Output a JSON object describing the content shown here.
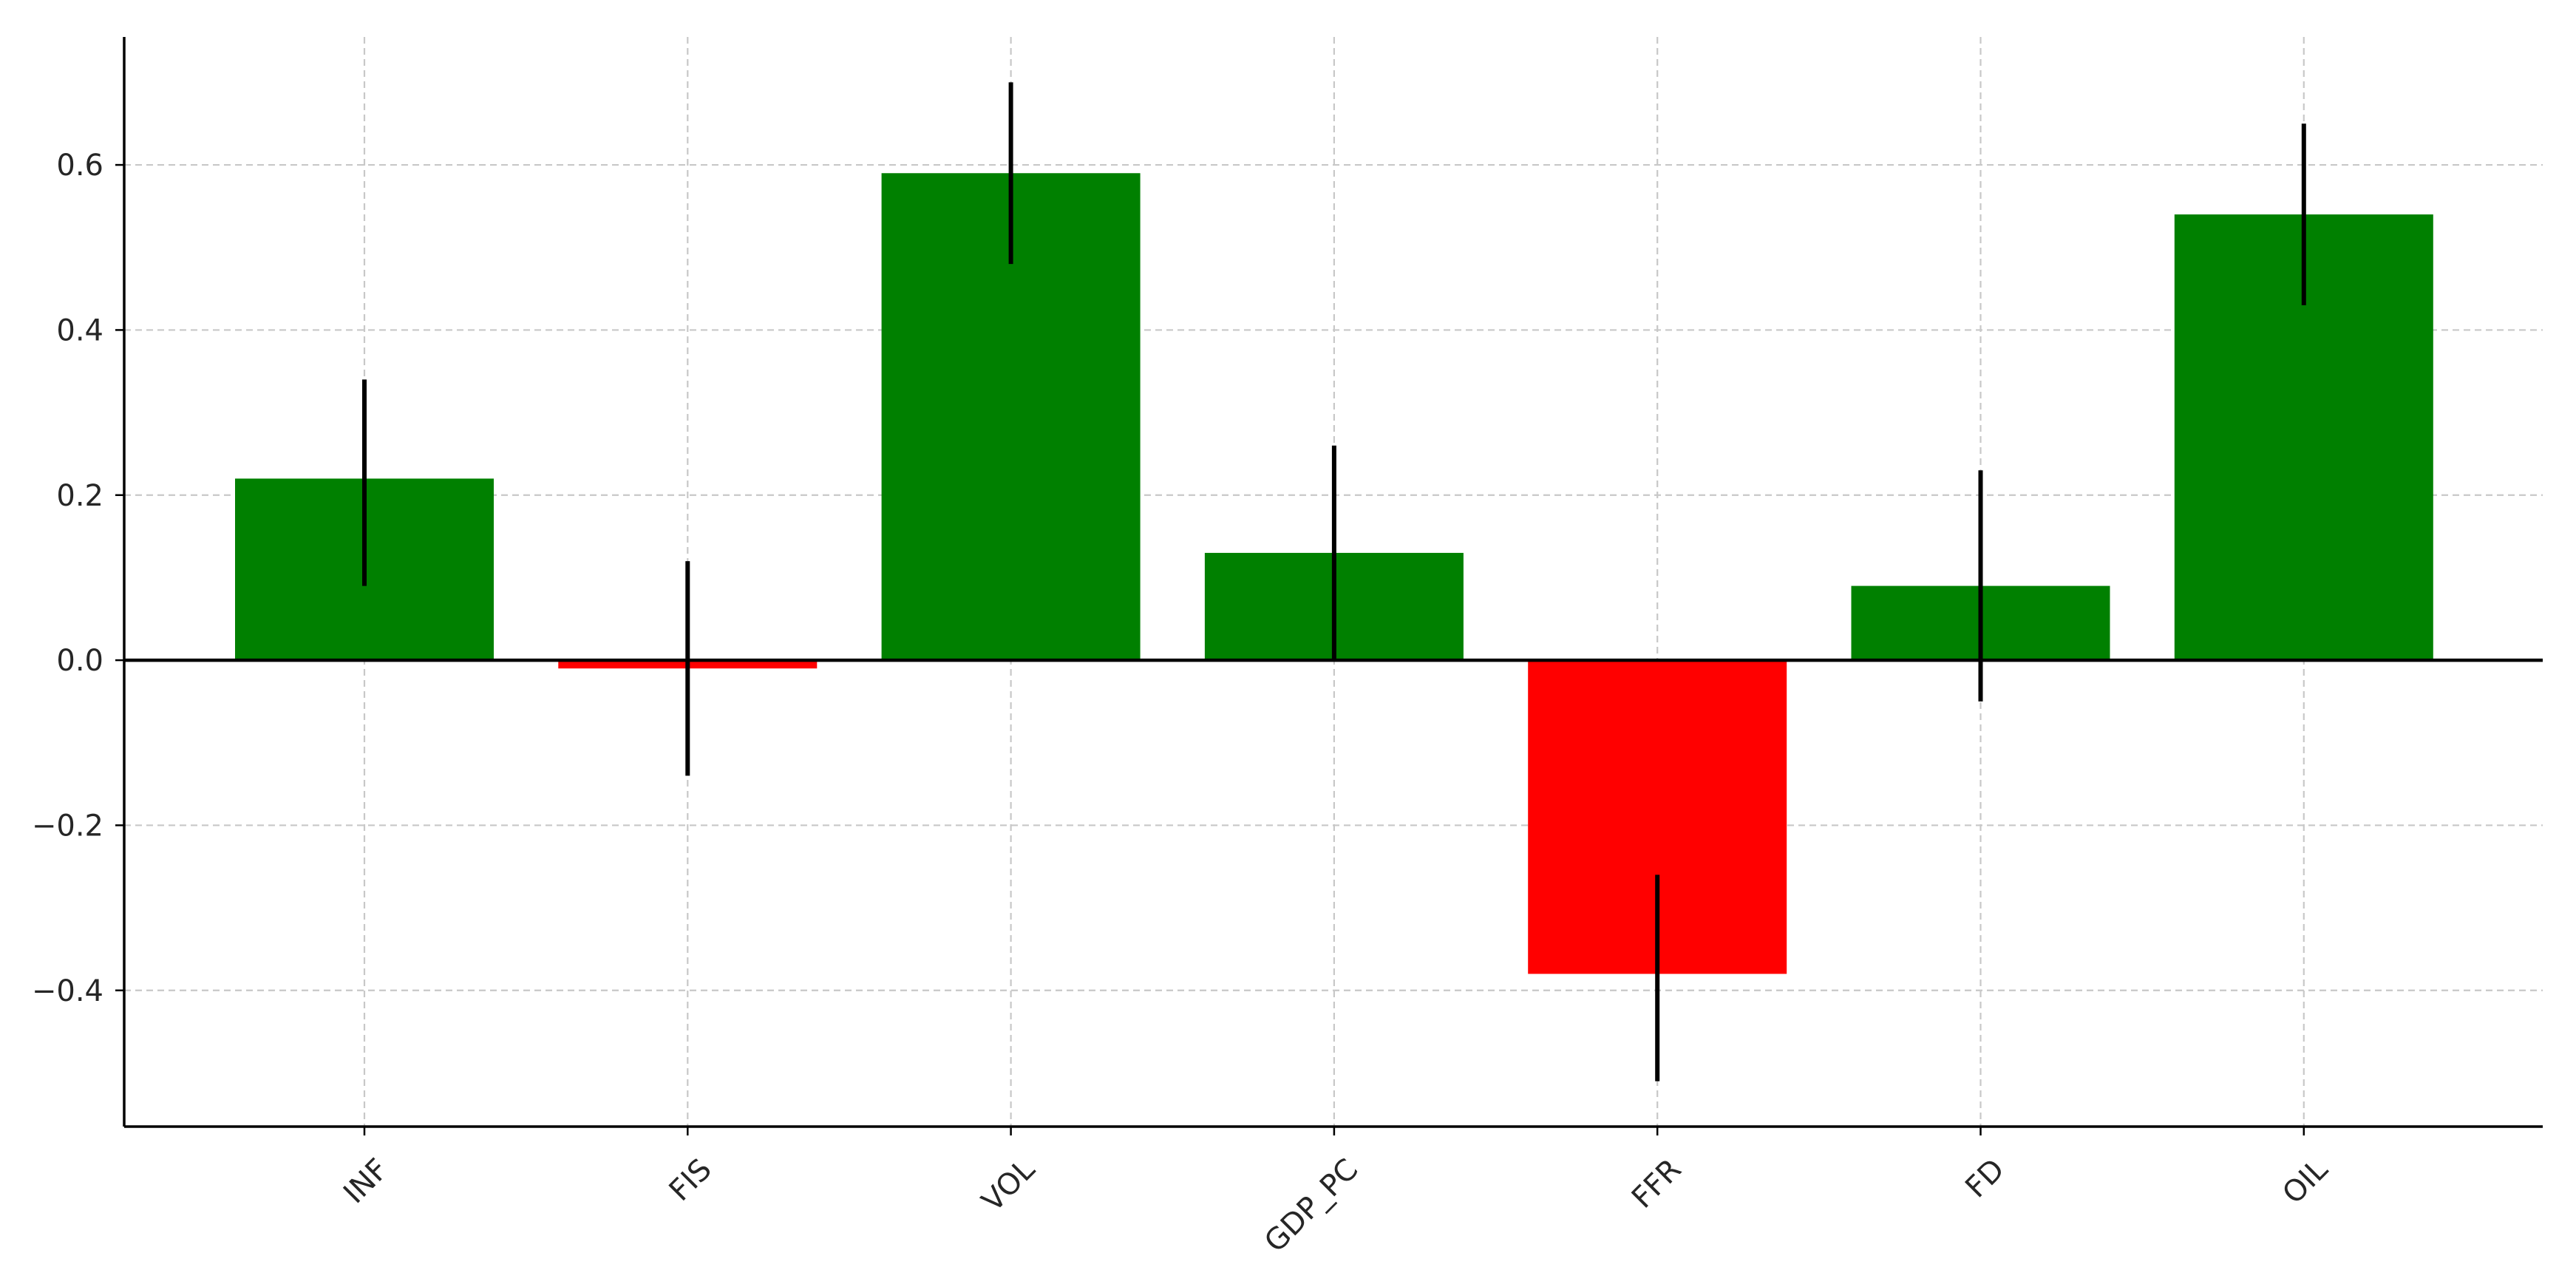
{
  "chart_data": {
    "type": "bar",
    "title": "",
    "xlabel": "",
    "ylabel": "",
    "categories": [
      "INF",
      "FIS",
      "VOL",
      "GDP_PC",
      "FFR",
      "FD",
      "OIL"
    ],
    "values": [
      0.22,
      -0.01,
      0.59,
      0.13,
      -0.38,
      0.09,
      0.54
    ],
    "error_low": [
      0.09,
      -0.14,
      0.48,
      0.0,
      -0.51,
      -0.05,
      0.43
    ],
    "error_high": [
      0.34,
      0.12,
      0.7,
      0.26,
      -0.26,
      0.23,
      0.65
    ],
    "bar_colors": [
      "#008000",
      "#ff0000",
      "#008000",
      "#008000",
      "#ff0000",
      "#008000",
      "#008000"
    ],
    "positive_color": "#008000",
    "negative_color": "#ff0000",
    "error_color": "#000000",
    "ylim": [
      -0.565,
      0.755
    ],
    "yticks": [
      -0.4,
      -0.2,
      0.0,
      0.2,
      0.4,
      0.6
    ],
    "ytick_labels": [
      "−0.4",
      "−0.2",
      "0.0",
      "0.2",
      "0.4",
      "0.6"
    ],
    "xtick_rotation_deg": 45,
    "grid": true,
    "legend": "none"
  }
}
